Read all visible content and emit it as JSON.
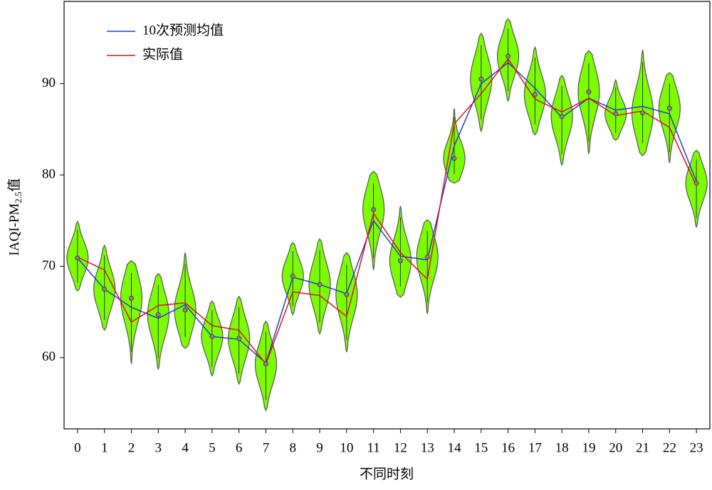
{
  "chart_data": {
    "type": "violin_line",
    "x_label": "不同时刻",
    "y_label": {
      "main": "IAQI-PM",
      "sub": "2.5",
      "suffix": "值"
    },
    "categories": [
      "0",
      "1",
      "2",
      "3",
      "4",
      "5",
      "6",
      "7",
      "8",
      "9",
      "10",
      "11",
      "12",
      "13",
      "14",
      "15",
      "16",
      "17",
      "18",
      "19",
      "20",
      "21",
      "22",
      "23"
    ],
    "ylim": [
      52.2,
      99.0
    ],
    "yticks": [
      60,
      70,
      80,
      90
    ],
    "legend": "upper-left",
    "violin_color": "#7cfc00",
    "violins": {
      "min": [
        67.3,
        63.0,
        59.3,
        58.7,
        61.0,
        58.0,
        57.1,
        54.2,
        64.7,
        62.6,
        60.6,
        69.6,
        66.6,
        64.8,
        79.1,
        84.8,
        88.1,
        84.4,
        81.1,
        82.3,
        83.8,
        82.1,
        81.3,
        74.3
      ],
      "max": [
        74.9,
        72.3,
        70.6,
        69.2,
        71.5,
        66.2,
        66.7,
        64.0,
        72.6,
        73.0,
        71.5,
        80.4,
        76.6,
        75.1,
        87.3,
        95.5,
        97.1,
        94.0,
        90.9,
        93.6,
        90.4,
        93.7,
        91.2,
        82.7
      ],
      "median": [
        70.9,
        67.5,
        66.5,
        64.7,
        65.2,
        62.3,
        62.1,
        59.3,
        68.9,
        68.0,
        66.9,
        76.2,
        70.6,
        71.0,
        81.8,
        90.5,
        93.0,
        88.8,
        86.4,
        89.1,
        86.7,
        86.8,
        87.3,
        79.1
      ]
    },
    "series": [
      {
        "name": "10次预测均值",
        "color": "#1f3fd8",
        "values": [
          70.9,
          67.5,
          65.5,
          64.3,
          65.8,
          62.3,
          62.0,
          59.4,
          68.8,
          68.0,
          67.0,
          75.0,
          71.1,
          70.7,
          83.2,
          90.0,
          92.3,
          89.5,
          86.3,
          88.4,
          87.1,
          87.5,
          86.7,
          79.3
        ]
      },
      {
        "name": "实际值",
        "color": "#e01010",
        "values": [
          71.0,
          69.6,
          63.9,
          65.7,
          66.0,
          63.5,
          63.0,
          59.3,
          67.2,
          66.8,
          64.5,
          75.8,
          71.5,
          68.6,
          85.6,
          88.9,
          92.7,
          88.3,
          86.9,
          88.4,
          86.5,
          87.0,
          85.2,
          78.8
        ]
      }
    ]
  }
}
